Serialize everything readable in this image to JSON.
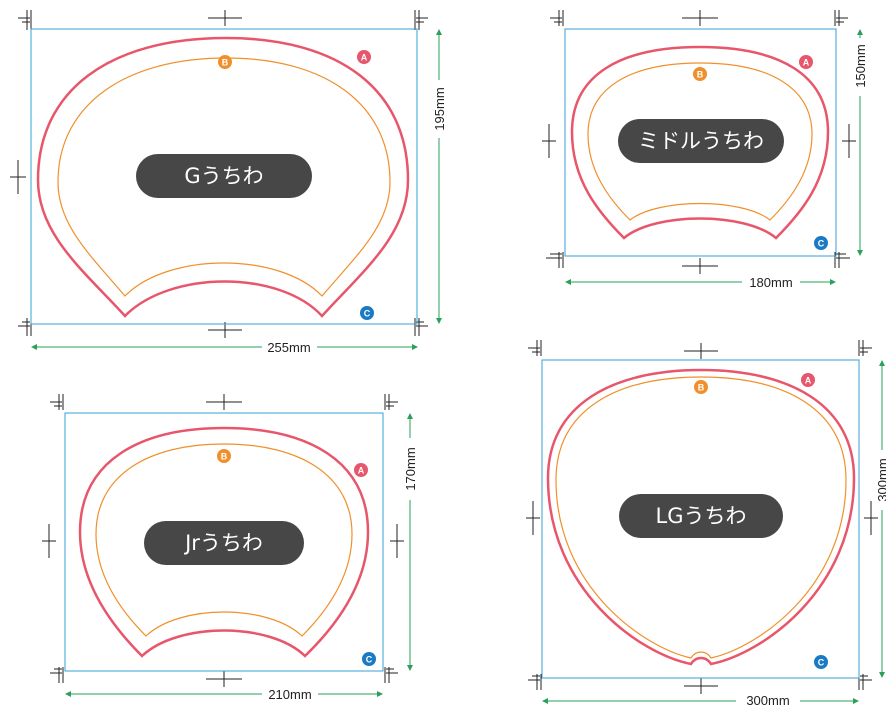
{
  "colors": {
    "cut_line": "#e8566b",
    "safe_line": "#f0902c",
    "frame": "#3a9fd6",
    "dimension": "#2aa05a",
    "pill": "#474747",
    "crop_marks": "#222222"
  },
  "legend": {
    "a": "A",
    "b": "B",
    "c": "C"
  },
  "fans": [
    {
      "name": "Gうちわ",
      "width_label": "255mm",
      "height_label": "195mm"
    },
    {
      "name": "ミドルうちわ",
      "width_label": "180mm",
      "height_label": "150mm"
    },
    {
      "name": "Jrうちわ",
      "width_label": "210mm",
      "height_label": "170mm"
    },
    {
      "name": "LGうちわ",
      "width_label": "300mm",
      "height_label": "300mm"
    }
  ]
}
